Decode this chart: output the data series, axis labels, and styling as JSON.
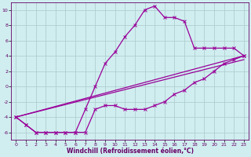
{
  "xlabel": "Windchill (Refroidissement éolien,°C)",
  "background_color": "#d0eef0",
  "grid_color": "#b0cdd0",
  "line_color": "#990099",
  "spine_color": "#660066",
  "xlim": [
    -0.5,
    23.5
  ],
  "ylim": [
    -7,
    11
  ],
  "xtick_labels": [
    "0",
    "1",
    "2",
    "3",
    "4",
    "5",
    "6",
    "7",
    "8",
    "9",
    "10",
    "11",
    "12",
    "13",
    "14",
    "15",
    "16",
    "17",
    "18",
    "19",
    "20",
    "21",
    "22",
    "23"
  ],
  "xtick_positions": [
    0,
    1,
    2,
    3,
    4,
    5,
    6,
    7,
    8,
    9,
    10,
    11,
    12,
    13,
    14,
    15,
    16,
    17,
    18,
    19,
    20,
    21,
    22,
    23
  ],
  "yticks": [
    -6,
    -4,
    -2,
    0,
    2,
    4,
    6,
    8,
    10
  ],
  "curve1_x": [
    0,
    1,
    2,
    3,
    4,
    5,
    6,
    7,
    8,
    9,
    10,
    11,
    12,
    13,
    14,
    15,
    16,
    17,
    18,
    19,
    20,
    21,
    22,
    23
  ],
  "curve1_y": [
    -4,
    -5,
    -6,
    -6,
    -6,
    -6,
    -6,
    -6,
    -3,
    -2.5,
    -2.5,
    -3,
    -3,
    -3,
    -2.5,
    -2,
    -1,
    -0.5,
    0.5,
    1,
    2,
    3,
    3.5,
    4
  ],
  "curve2_x": [
    0,
    1,
    2,
    3,
    4,
    5,
    6,
    7,
    8,
    9,
    10,
    11,
    12,
    13,
    14,
    15,
    16,
    17,
    18,
    19,
    20,
    21,
    22,
    23
  ],
  "curve2_y": [
    -4,
    -5,
    -6,
    -6,
    -6,
    -6,
    -6,
    -3,
    0,
    3,
    4.5,
    6.5,
    8,
    10,
    10.5,
    9,
    9,
    8.5,
    5,
    5,
    5,
    5,
    5,
    4
  ],
  "curve3_x": [
    0,
    23
  ],
  "curve3_y": [
    -4,
    4
  ],
  "curve4_x": [
    0,
    23
  ],
  "curve4_y": [
    -4,
    3.5
  ],
  "tick_fontsize": 4.5,
  "xlabel_fontsize": 5.5,
  "linewidth": 0.9,
  "marker_size": 2.5
}
